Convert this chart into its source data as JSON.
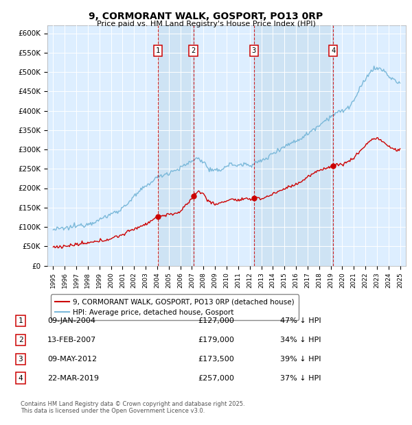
{
  "title": "9, CORMORANT WALK, GOSPORT, PO13 0RP",
  "subtitle": "Price paid vs. HM Land Registry's House Price Index (HPI)",
  "hpi_color": "#7ab8d9",
  "price_color": "#cc0000",
  "vline_color": "#cc0000",
  "shade_color": "#c8dff0",
  "plot_bg": "#ddeeff",
  "ylim": [
    0,
    620000
  ],
  "yticks": [
    0,
    50000,
    100000,
    150000,
    200000,
    250000,
    300000,
    350000,
    400000,
    450000,
    500000,
    550000,
    600000
  ],
  "legend_label_price": "9, CORMORANT WALK, GOSPORT, PO13 0RP (detached house)",
  "legend_label_hpi": "HPI: Average price, detached house, Gosport",
  "transactions": [
    {
      "num": 1,
      "date": "09-JAN-2004",
      "price": 127000,
      "price_str": "£127,000",
      "pct": "47% ↓ HPI",
      "x_year": 2004.04
    },
    {
      "num": 2,
      "date": "13-FEB-2007",
      "price": 179000,
      "price_str": "£179,000",
      "pct": "34% ↓ HPI",
      "x_year": 2007.12
    },
    {
      "num": 3,
      "date": "09-MAY-2012",
      "price": 173500,
      "price_str": "£173,500",
      "pct": "39% ↓ HPI",
      "x_year": 2012.36
    },
    {
      "num": 4,
      "date": "22-MAR-2019",
      "price": 257000,
      "price_str": "£257,000",
      "pct": "37% ↓ HPI",
      "x_year": 2019.22
    }
  ],
  "footnote": "Contains HM Land Registry data © Crown copyright and database right 2025.\nThis data is licensed under the Open Government Licence v3.0.",
  "xlim_start": 1994.5,
  "xlim_end": 2025.5,
  "hpi_segments": [
    [
      1995.0,
      93000
    ],
    [
      1996.0,
      96000
    ],
    [
      1997.0,
      102000
    ],
    [
      1998.0,
      108000
    ],
    [
      1999.0,
      118000
    ],
    [
      2000.0,
      133000
    ],
    [
      2001.0,
      148000
    ],
    [
      2002.0,
      178000
    ],
    [
      2003.0,
      205000
    ],
    [
      2004.0,
      228000
    ],
    [
      2005.0,
      240000
    ],
    [
      2006.0,
      252000
    ],
    [
      2007.0,
      270000
    ],
    [
      2007.5,
      278000
    ],
    [
      2008.0,
      268000
    ],
    [
      2008.5,
      248000
    ],
    [
      2009.0,
      243000
    ],
    [
      2009.5,
      248000
    ],
    [
      2010.0,
      258000
    ],
    [
      2010.5,
      262000
    ],
    [
      2011.0,
      258000
    ],
    [
      2011.5,
      262000
    ],
    [
      2012.0,
      260000
    ],
    [
      2012.5,
      265000
    ],
    [
      2013.0,
      270000
    ],
    [
      2013.5,
      278000
    ],
    [
      2014.0,
      290000
    ],
    [
      2014.5,
      300000
    ],
    [
      2015.0,
      308000
    ],
    [
      2015.5,
      315000
    ],
    [
      2016.0,
      322000
    ],
    [
      2016.5,
      330000
    ],
    [
      2017.0,
      340000
    ],
    [
      2017.5,
      352000
    ],
    [
      2018.0,
      363000
    ],
    [
      2018.5,
      375000
    ],
    [
      2019.0,
      385000
    ],
    [
      2019.5,
      395000
    ],
    [
      2020.0,
      398000
    ],
    [
      2020.5,
      408000
    ],
    [
      2021.0,
      425000
    ],
    [
      2021.5,
      455000
    ],
    [
      2022.0,
      480000
    ],
    [
      2022.5,
      505000
    ],
    [
      2023.0,
      510000
    ],
    [
      2023.5,
      505000
    ],
    [
      2024.0,
      490000
    ],
    [
      2024.5,
      478000
    ],
    [
      2025.0,
      470000
    ]
  ],
  "price_segments": [
    [
      1995.0,
      48000
    ],
    [
      1996.0,
      50000
    ],
    [
      1997.0,
      54000
    ],
    [
      1998.0,
      58000
    ],
    [
      1999.0,
      63000
    ],
    [
      2000.0,
      70000
    ],
    [
      2001.0,
      80000
    ],
    [
      2002.0,
      95000
    ],
    [
      2003.0,
      107000
    ],
    [
      2004.04,
      127000
    ],
    [
      2005.0,
      132000
    ],
    [
      2006.0,
      138000
    ],
    [
      2007.12,
      179000
    ],
    [
      2007.5,
      192000
    ],
    [
      2008.0,
      185000
    ],
    [
      2008.5,
      165000
    ],
    [
      2009.0,
      158000
    ],
    [
      2009.5,
      162000
    ],
    [
      2010.0,
      168000
    ],
    [
      2010.5,
      172000
    ],
    [
      2011.0,
      168000
    ],
    [
      2011.5,
      172000
    ],
    [
      2012.0,
      170000
    ],
    [
      2012.36,
      173500
    ],
    [
      2012.5,
      178000
    ],
    [
      2013.0,
      172000
    ],
    [
      2013.5,
      178000
    ],
    [
      2014.0,
      185000
    ],
    [
      2014.5,
      192000
    ],
    [
      2015.0,
      198000
    ],
    [
      2015.5,
      205000
    ],
    [
      2016.0,
      210000
    ],
    [
      2016.5,
      218000
    ],
    [
      2017.0,
      228000
    ],
    [
      2017.5,
      238000
    ],
    [
      2018.0,
      245000
    ],
    [
      2018.5,
      252000
    ],
    [
      2019.22,
      257000
    ],
    [
      2019.5,
      260000
    ],
    [
      2020.0,
      262000
    ],
    [
      2020.5,
      268000
    ],
    [
      2021.0,
      278000
    ],
    [
      2021.5,
      295000
    ],
    [
      2022.0,
      310000
    ],
    [
      2022.5,
      325000
    ],
    [
      2023.0,
      330000
    ],
    [
      2023.5,
      320000
    ],
    [
      2024.0,
      308000
    ],
    [
      2024.5,
      300000
    ],
    [
      2025.0,
      298000
    ]
  ]
}
